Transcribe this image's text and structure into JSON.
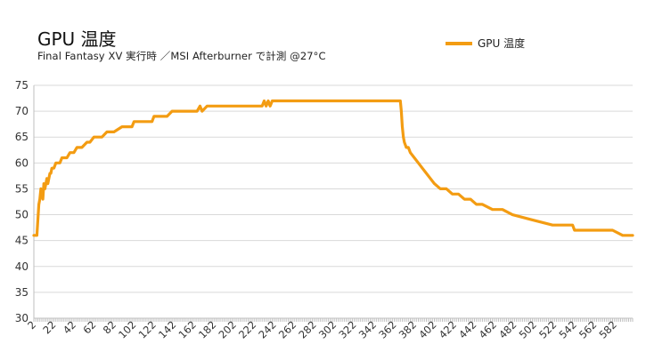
{
  "chart_data": {
    "type": "line",
    "title": "GPU 温度",
    "subtitle": "Final Fantasy XV 実行時 ／MSI Afterburner で計測 @27°C",
    "ylim": [
      30,
      75
    ],
    "yticks": [
      30,
      35,
      40,
      45,
      50,
      55,
      60,
      65,
      70,
      75
    ],
    "xlim": [
      2,
      600
    ],
    "xticks": [
      2,
      22,
      42,
      62,
      82,
      102,
      122,
      142,
      162,
      182,
      202,
      222,
      242,
      262,
      282,
      302,
      322,
      342,
      362,
      382,
      402,
      422,
      442,
      462,
      482,
      502,
      522,
      542,
      562,
      582
    ],
    "grid": true,
    "legend": "top-right",
    "color": "#f39c12",
    "series": [
      {
        "name": "GPU 温度",
        "x": [
          2,
          5,
          7,
          8,
          9,
          11,
          12,
          13,
          14,
          15,
          16,
          18,
          19,
          20,
          22,
          24,
          25,
          28,
          30,
          35,
          38,
          42,
          45,
          50,
          55,
          58,
          62,
          65,
          70,
          75,
          78,
          82,
          90,
          100,
          102,
          108,
          120,
          122,
          135,
          140,
          165,
          168,
          170,
          175,
          230,
          232,
          234,
          236,
          238,
          240,
          242,
          245,
          260,
          300,
          340,
          368,
          369,
          370,
          371,
          372,
          374,
          376,
          378,
          382,
          386,
          390,
          394,
          398,
          402,
          408,
          414,
          420,
          426,
          432,
          438,
          444,
          450,
          460,
          470,
          480,
          500,
          520,
          540,
          542,
          545,
          550,
          560,
          580,
          590,
          600
        ],
        "y": [
          46,
          46,
          52,
          53,
          55,
          53,
          56,
          55,
          56,
          57,
          56,
          58,
          58,
          59,
          59,
          60,
          60,
          60,
          61,
          61,
          62,
          62,
          63,
          63,
          64,
          64,
          65,
          65,
          65,
          66,
          66,
          66,
          67,
          67,
          68,
          68,
          68,
          69,
          69,
          70,
          70,
          71,
          70,
          71,
          71,
          72,
          71,
          72,
          71,
          72,
          72,
          72,
          72,
          72,
          72,
          72,
          70,
          67,
          65,
          64,
          63,
          63,
          62,
          61,
          60,
          59,
          58,
          57,
          56,
          55,
          55,
          54,
          54,
          53,
          53,
          52,
          52,
          51,
          51,
          50,
          49,
          48,
          48,
          47,
          47,
          47,
          47,
          47,
          46,
          46
        ]
      }
    ]
  }
}
